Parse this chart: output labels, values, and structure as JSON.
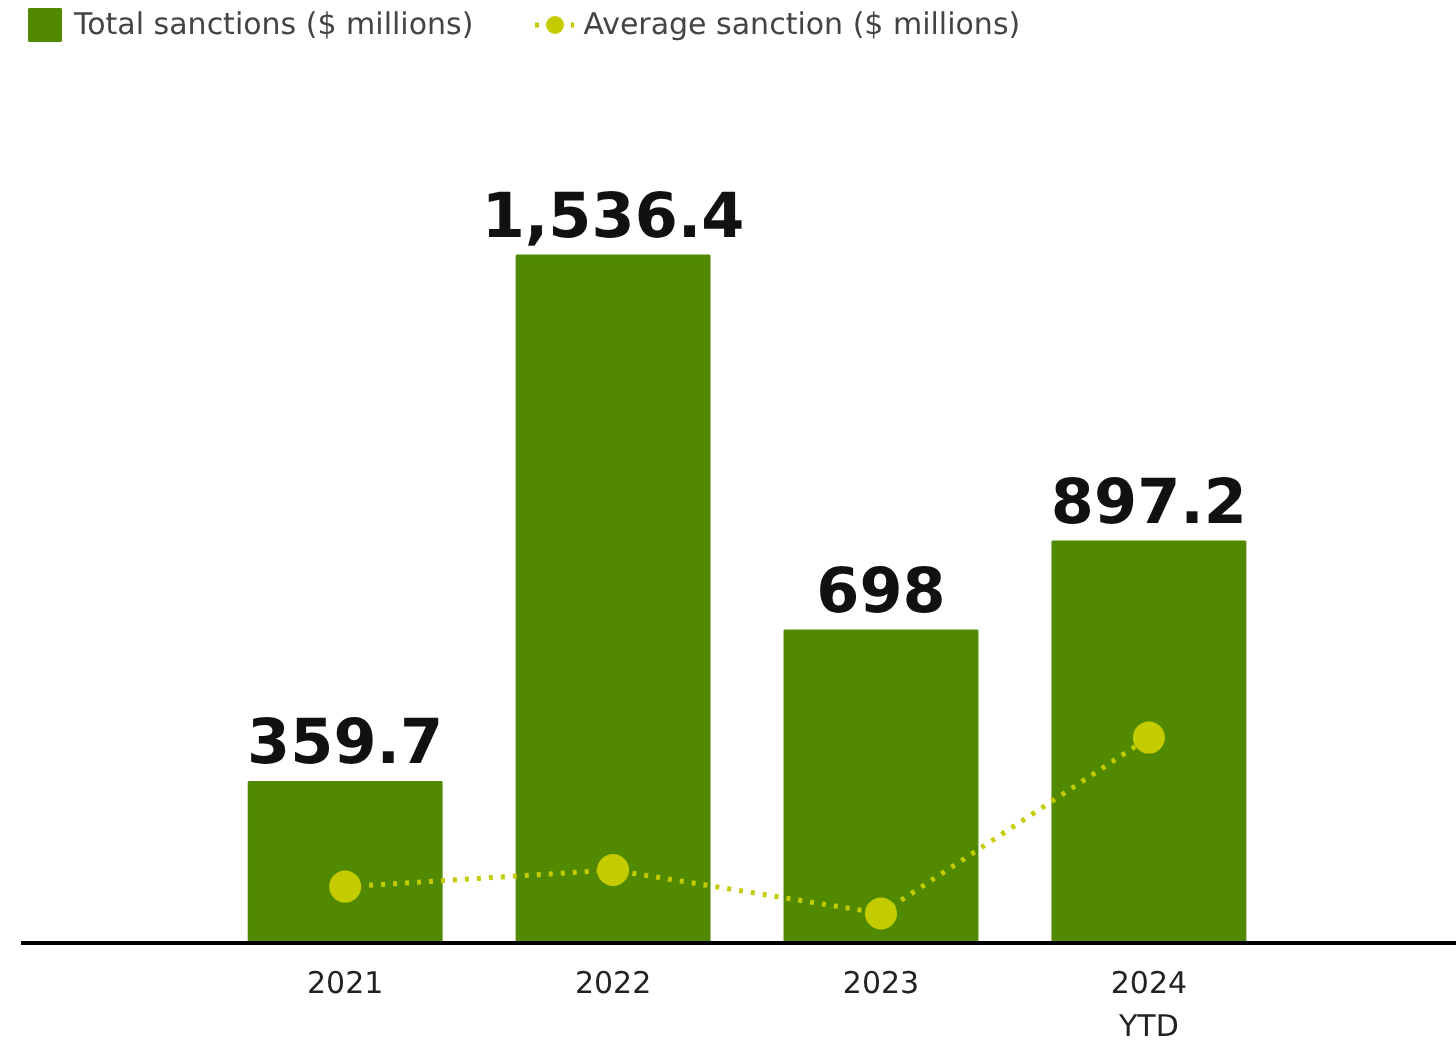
{
  "chart_data": {
    "type": "bar",
    "categories": [
      "2021",
      "2022",
      "2023",
      "2024\nYTD"
    ],
    "series": [
      {
        "name": "Total sanctions ($ millions)",
        "color": "#518a00",
        "values": [
          359.7,
          1536.4,
          698,
          897.2
        ],
        "value_labels": [
          "359.7",
          "1,536.4",
          "698",
          "897.2"
        ]
      },
      {
        "name": "Average sanction ($ millions)",
        "type": "line",
        "color": "#c4cc00",
        "values": [
          126,
          163,
          66,
          459
        ],
        "marker": "circle",
        "line_style": "dotted"
      }
    ],
    "legend": "top left"
  }
}
